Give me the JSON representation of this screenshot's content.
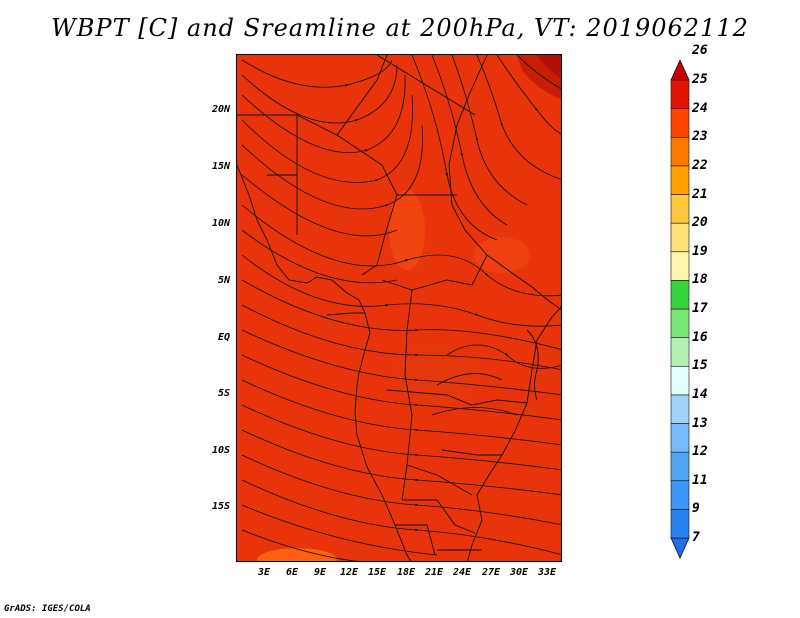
{
  "title": "WBPT [C] and Sreamline at 200hPa, VT: 2019062112",
  "credit": "GrADS: IGES/COLA",
  "map": {
    "lat_ticks": [
      "20N",
      "15N",
      "10N",
      "5N",
      "EQ",
      "5S",
      "10S",
      "15S"
    ],
    "lon_ticks": [
      "3E",
      "6E",
      "9E",
      "12E",
      "15E",
      "18E",
      "21E",
      "24E",
      "27E",
      "30E",
      "33E"
    ],
    "extent": {
      "lon_min": 0,
      "lon_max": 34.5,
      "lat_min": -19.5,
      "lat_max": 25
    }
  },
  "colorbar": {
    "labels": [
      "7",
      "9",
      "11",
      "12",
      "13",
      "14",
      "15",
      "16",
      "17",
      "18",
      "19",
      "20",
      "21",
      "22",
      "23",
      "24",
      "25",
      "26"
    ],
    "colors": [
      "#1e6ee6",
      "#2882f0",
      "#3c96f5",
      "#50a5f5",
      "#78b9fa",
      "#a0d2fa",
      "#e1ffff",
      "#b4f0b4",
      "#78e678",
      "#37d23c",
      "#fff5aa",
      "#ffe178",
      "#ffc83c",
      "#ffa000",
      "#ff7800",
      "#ff4600",
      "#e11400",
      "#c80000"
    ]
  }
}
